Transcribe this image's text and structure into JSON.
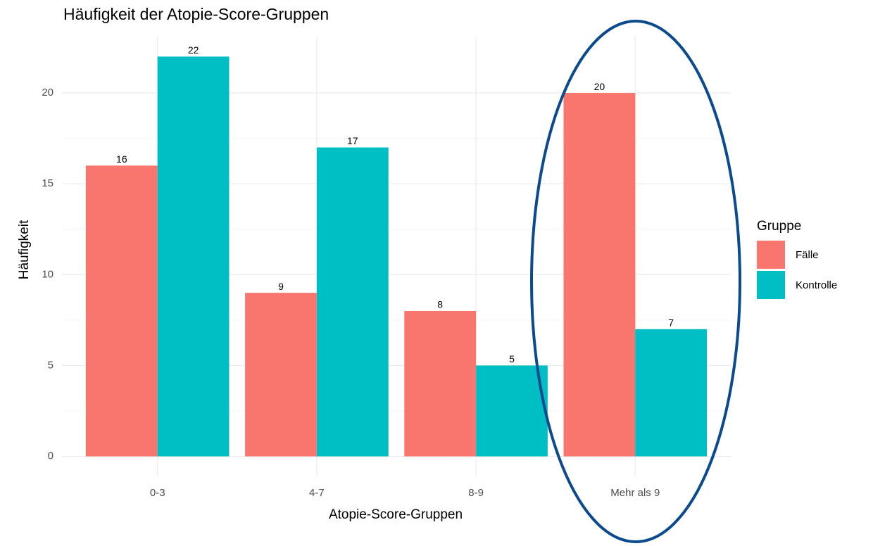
{
  "chart_data": {
    "type": "bar",
    "title": "Häufigkeit der Atopie-Score-Gruppen",
    "x_label": "Atopie-Score-Gruppen",
    "y_label": "Häufigkeit",
    "legend_title": "Gruppe",
    "legend_position": "right",
    "categories": [
      "0-3",
      "4-7",
      "8-9",
      "Mehr als 9"
    ],
    "series": [
      {
        "name": "Fälle",
        "color": "#F8766D",
        "values": [
          16,
          9,
          8,
          20
        ]
      },
      {
        "name": "Kontrolle",
        "color": "#00BFC4",
        "values": [
          22,
          17,
          5,
          7
        ]
      }
    ],
    "ylim": [
      -1.1,
      23.1
    ],
    "yticks": [
      0,
      5,
      10,
      15,
      20
    ],
    "grid": true
  }
}
